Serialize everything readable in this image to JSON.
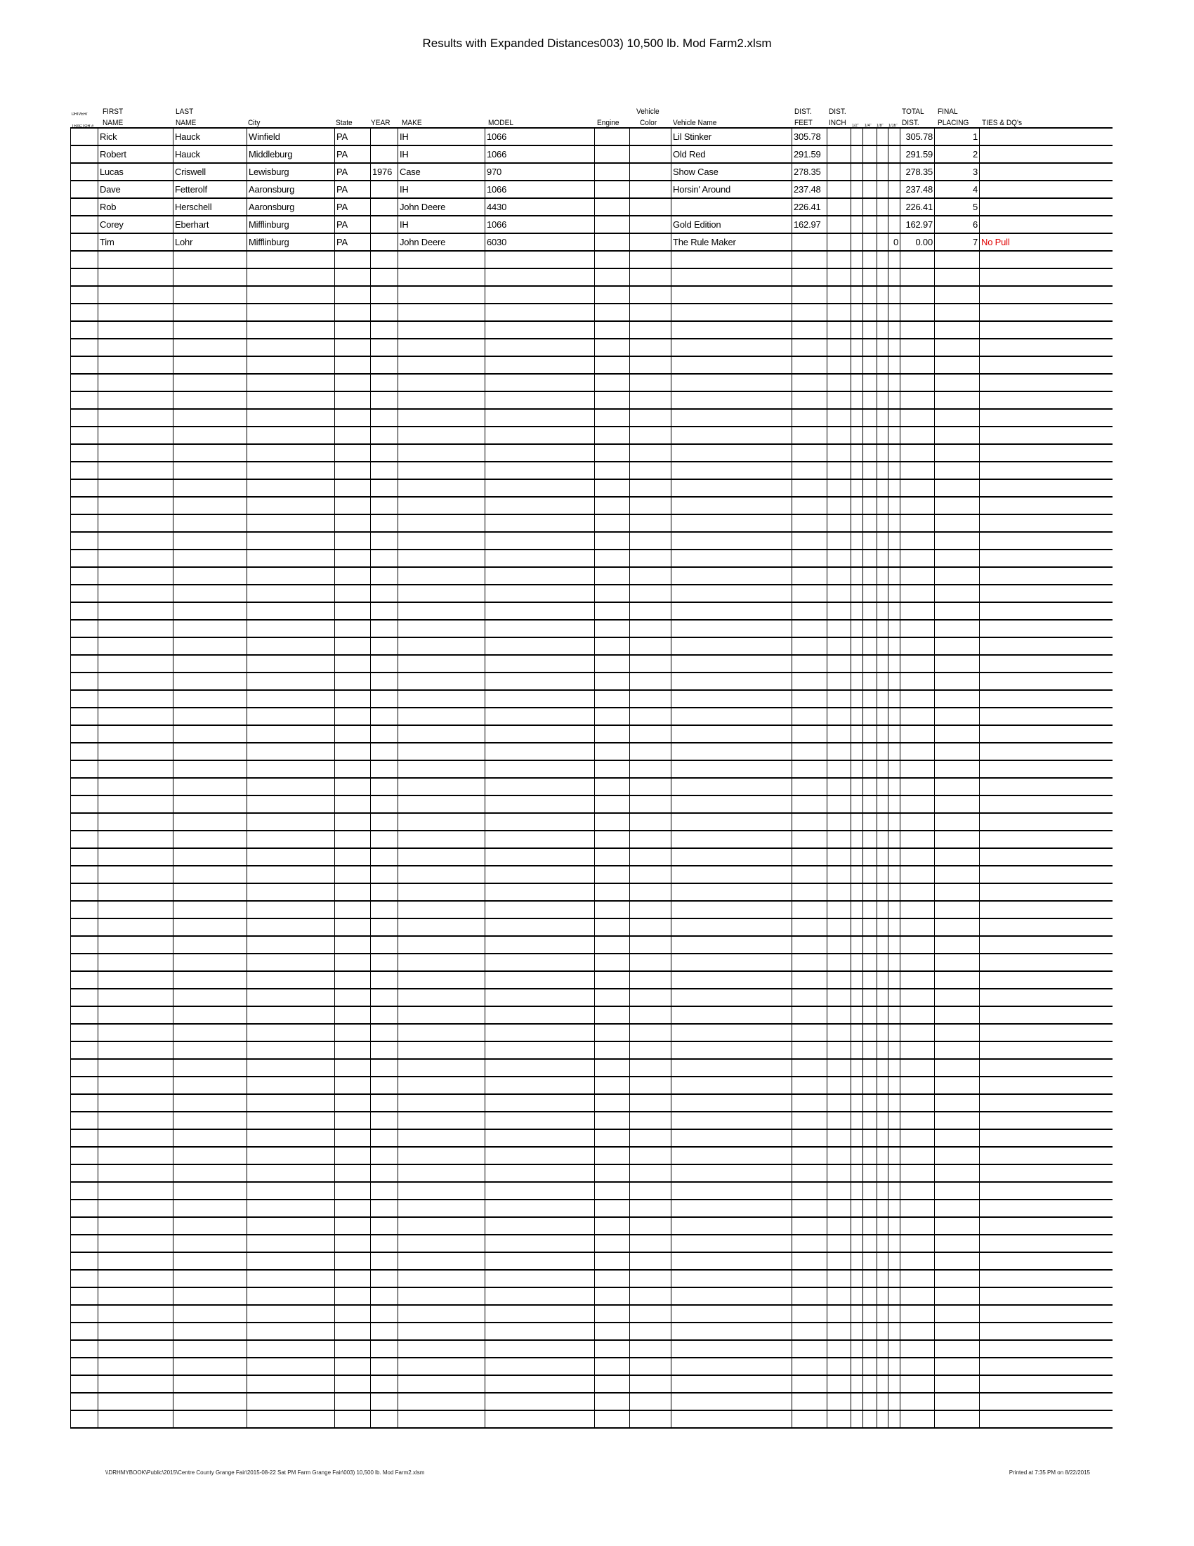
{
  "title": "Results with Expanded Distances003) 10,500 lb. Mod Farm2.xlsm",
  "headers": {
    "driver_1": "DRIVER/",
    "driver_2": "TRACTOR #",
    "first_1": "FIRST",
    "first_2": "NAME",
    "last_1": "LAST",
    "last_2": "NAME",
    "city": "City",
    "state": "State",
    "year": "YEAR",
    "make": "MAKE",
    "model": "MODEL",
    "engine": "Engine",
    "color_1": "Vehicle",
    "color_2": "Color",
    "vehicle_name": "Vehicle Name",
    "feet_1": "DIST.",
    "feet_2": "FEET",
    "inch_1": "DIST.",
    "inch_2": "INCH",
    "half": "1/2\"",
    "quarter": "1/4\"",
    "eighth": "1/8\"",
    "sixteenth": "1/16\"",
    "total_1": "TOTAL",
    "total_2": "DIST.",
    "placing_1": "FINAL",
    "placing_2": "PLACING",
    "ties": "TIES & DQ's"
  },
  "columns": [
    "driver",
    "first",
    "last",
    "city",
    "state",
    "year",
    "make",
    "model",
    "engine",
    "color",
    "vehicle_name",
    "dist_feet",
    "dist_inch",
    "half",
    "quarter",
    "eighth",
    "sixteenth",
    "total",
    "placing",
    "ties"
  ],
  "rows": [
    {
      "first": "Rick",
      "last": "Hauck",
      "city": "Winfield",
      "state": "PA",
      "year": "",
      "make": "IH",
      "model": "1066",
      "vehicle_name": "Lil Stinker",
      "dist_feet": "305.78",
      "total": "305.78",
      "placing": "1"
    },
    {
      "first": "Robert",
      "last": "Hauck",
      "city": "Middleburg",
      "state": "PA",
      "year": "",
      "make": "IH",
      "model": "1066",
      "vehicle_name": "Old Red",
      "dist_feet": "291.59",
      "total": "291.59",
      "placing": "2"
    },
    {
      "first": "Lucas",
      "last": "Criswell",
      "city": "Lewisburg",
      "state": "PA",
      "year": "1976",
      "make": "Case",
      "model": "970",
      "vehicle_name": "Show Case",
      "dist_feet": "278.35",
      "total": "278.35",
      "placing": "3"
    },
    {
      "first": "Dave",
      "last": "Fetterolf",
      "city": "Aaronsburg",
      "state": "PA",
      "year": "",
      "make": "IH",
      "model": "1066",
      "vehicle_name": "Horsin' Around",
      "dist_feet": "237.48",
      "total": "237.48",
      "placing": "4"
    },
    {
      "first": "Rob",
      "last": "Herschell",
      "city": "Aaronsburg",
      "state": "PA",
      "year": "",
      "make": "John Deere",
      "model": "4430",
      "vehicle_name": "",
      "dist_feet": "226.41",
      "total": "226.41",
      "placing": "5"
    },
    {
      "first": "Corey",
      "last": "Eberhart",
      "city": "Mifflinburg",
      "state": "PA",
      "year": "",
      "make": "IH",
      "model": "1066",
      "vehicle_name": "Gold Edition",
      "dist_feet": "162.97",
      "total": "162.97",
      "placing": "6"
    },
    {
      "first": "Tim",
      "last": "Lohr",
      "city": "Mifflinburg",
      "state": "PA",
      "year": "",
      "make": "John Deere",
      "model": "6030",
      "vehicle_name": "The Rule Maker",
      "dist_feet": "",
      "sixteenth": "0",
      "total": "0.00",
      "placing": "7",
      "ties": "No Pull"
    }
  ],
  "colors": {
    "dq_text": "#e00000"
  },
  "footer": {
    "path": "\\\\DRHMYBOOK\\Public\\2015\\Centre County Grange Fair\\2015-08-22 Sat PM Farm Grange Fair\\003) 10,500 lb. Mod Farm2.xlsm",
    "printed": "Printed at 7:35 PM on 8/22/2015"
  }
}
